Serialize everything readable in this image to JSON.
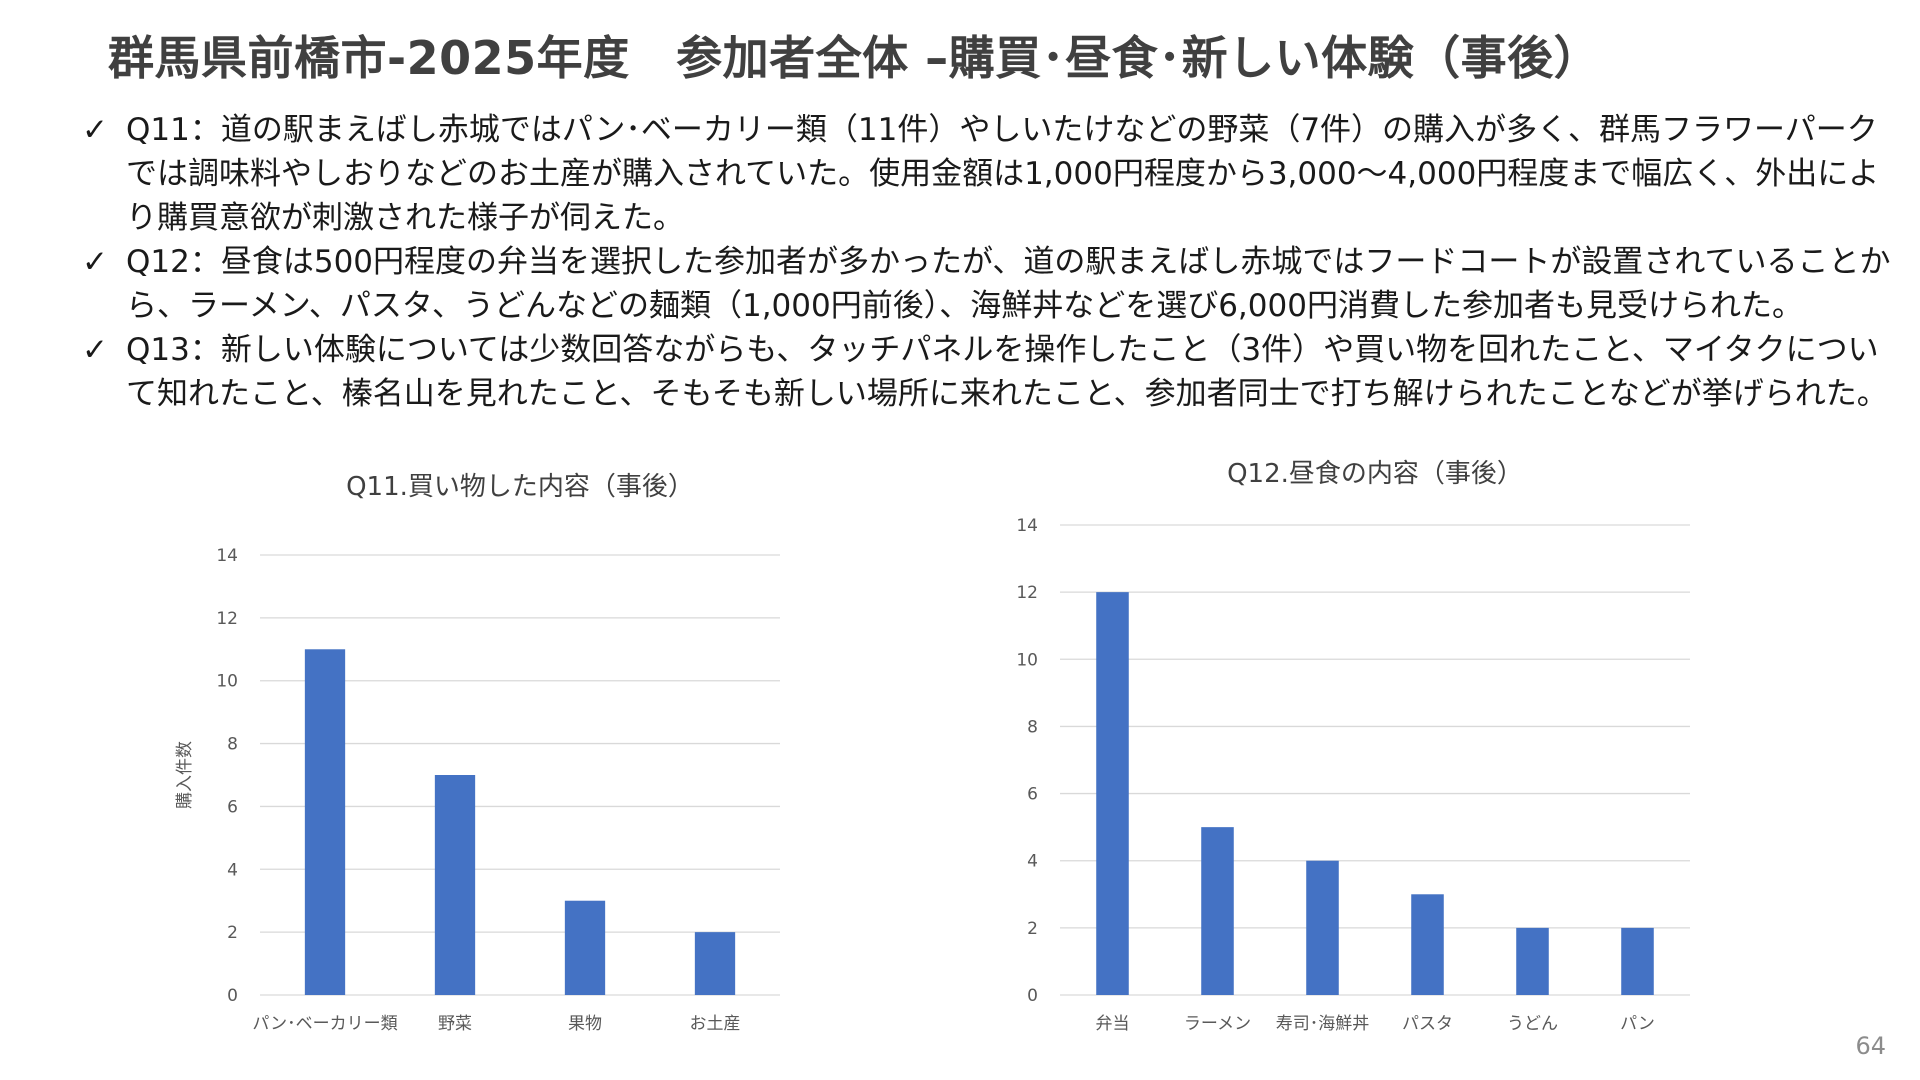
{
  "slide": {
    "title": "群馬県前橋市-2025年度　参加者全体 –購買･昼食･新しい体験（事後）",
    "bullets": [
      {
        "check": "✓",
        "text": "Q11：道の駅まえばし赤城ではパン･ベーカリー類（11件）やしいたけなどの野菜（7件）の購入が多く、群馬フラワーパークでは調味料やしおりなどのお土産が購入されていた。使用金額は1,000円程度から3,000～4,000円程度まで幅広く、外出により購買意欲が刺激された様子が伺えた。"
      },
      {
        "check": "✓",
        "text": "Q12：昼食は500円程度の弁当を選択した参加者が多かったが、道の駅まえばし赤城ではフードコートが設置されていることから、ラーメン、パスタ、うどんなどの麺類（1,000円前後）、海鮮丼などを選び6,000円消費した参加者も見受けられた。"
      },
      {
        "check": "✓",
        "text": "Q13：新しい体験については少数回答ながらも、タッチパネルを操作したこと（3件）や買い物を回れたこと、マイタクについて知れたこと、榛名山を見れたこと、そもそも新しい場所に来れたこと、参加者同士で打ち解けられたことなどが挙げられた。"
      }
    ],
    "page_number": "64"
  },
  "chart_data": [
    {
      "type": "bar",
      "title": "Q11.買い物した内容（事後）",
      "xlabel": "",
      "ylabel": "購入件数",
      "categories": [
        "パン･ベーカリー類",
        "野菜",
        "果物",
        "お土産"
      ],
      "values": [
        11,
        7,
        3,
        2
      ],
      "ylim": [
        0,
        14
      ],
      "yticks": [
        0,
        2,
        4,
        6,
        8,
        10,
        12,
        14
      ],
      "grid": true,
      "legend": "none",
      "bar_color": "#4472c4"
    },
    {
      "type": "bar",
      "title": "Q12.昼食の内容（事後）",
      "xlabel": "",
      "ylabel": "",
      "categories": [
        "弁当",
        "ラーメン",
        "寿司･海鮮丼",
        "パスタ",
        "うどん",
        "パン"
      ],
      "values": [
        12,
        5,
        4,
        3,
        2,
        2
      ],
      "ylim": [
        0,
        14
      ],
      "yticks": [
        0,
        2,
        4,
        6,
        8,
        10,
        12,
        14
      ],
      "grid": true,
      "legend": "none",
      "bar_color": "#4472c4"
    }
  ]
}
